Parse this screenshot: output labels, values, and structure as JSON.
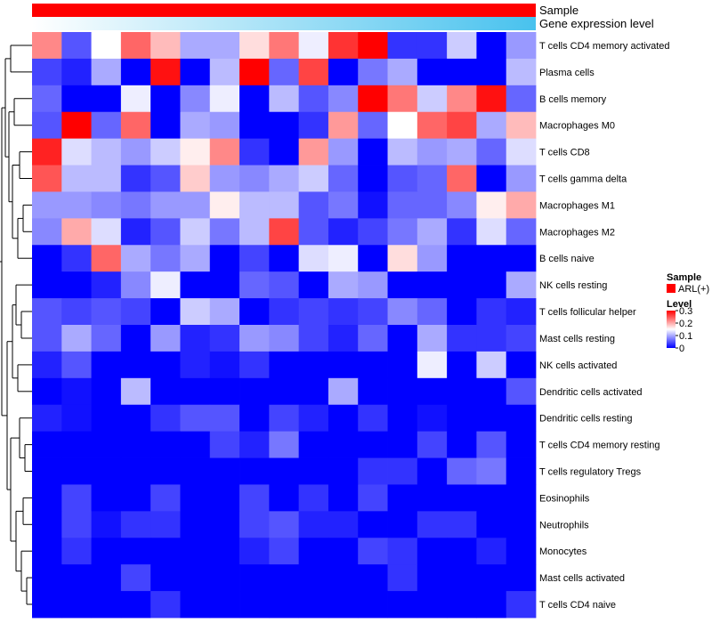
{
  "chart_data": {
    "type": "heatmap",
    "title": "",
    "annotations": [
      {
        "name": "Sample",
        "kind": "solid",
        "color": "#ff0000"
      },
      {
        "name": "Gene expression level",
        "kind": "gradient",
        "colors": [
          "#ffffff",
          "#48c2ee"
        ]
      }
    ],
    "rows": [
      "T cells CD4 memory activated",
      "Plasma cells",
      "B cells memory",
      "Macrophages M0",
      "T cells CD8",
      "T cells gamma delta",
      "Macrophages M1",
      "Macrophages M2",
      "B cells naive",
      "NK cells resting",
      "T cells follicular helper",
      "Mast cells resting",
      "NK cells activated",
      "Dendritic cells activated",
      "Dendritic cells resting",
      "T cells CD4 memory resting",
      "T cells regulatory  Tregs",
      "Eosinophils",
      "Neutrophils",
      "Monocytes",
      "Mast cells activated",
      "T cells CD4 naive"
    ],
    "n_columns": 17,
    "values": [
      [
        0.22,
        0.05,
        0.15,
        0.24,
        0.19,
        0.1,
        0.1,
        0.17,
        0.23,
        0.14,
        0.27,
        0.3,
        0.03,
        0.03,
        0.12,
        0.0,
        0.09
      ],
      [
        0.04,
        0.02,
        0.1,
        0.0,
        0.29,
        0.0,
        0.11,
        0.3,
        0.06,
        0.26,
        0.0,
        0.07,
        0.1,
        0.0,
        0.0,
        0.0,
        0.11
      ],
      [
        0.06,
        0.0,
        0.0,
        0.14,
        0.0,
        0.08,
        0.14,
        0.0,
        0.11,
        0.05,
        0.08,
        0.3,
        0.23,
        0.12,
        0.22,
        0.29,
        0.06
      ],
      [
        0.05,
        0.3,
        0.06,
        0.24,
        0.0,
        0.1,
        0.09,
        0.0,
        0.0,
        0.03,
        0.21,
        0.06,
        0.15,
        0.24,
        0.26,
        0.1,
        0.19
      ],
      [
        0.28,
        0.13,
        0.11,
        0.09,
        0.12,
        0.16,
        0.22,
        0.03,
        0.0,
        0.21,
        0.09,
        0.0,
        0.11,
        0.09,
        0.1,
        0.06,
        0.13
      ],
      [
        0.25,
        0.11,
        0.11,
        0.03,
        0.05,
        0.18,
        0.09,
        0.08,
        0.1,
        0.12,
        0.06,
        0.0,
        0.05,
        0.06,
        0.24,
        0.0,
        0.09
      ],
      [
        0.09,
        0.09,
        0.08,
        0.07,
        0.09,
        0.09,
        0.16,
        0.11,
        0.11,
        0.05,
        0.07,
        0.01,
        0.06,
        0.06,
        0.08,
        0.16,
        0.2
      ],
      [
        0.08,
        0.2,
        0.13,
        0.02,
        0.05,
        0.12,
        0.07,
        0.11,
        0.26,
        0.05,
        0.02,
        0.04,
        0.07,
        0.1,
        0.03,
        0.13,
        0.06
      ],
      [
        0.0,
        0.03,
        0.24,
        0.1,
        0.07,
        0.1,
        0.0,
        0.04,
        0.0,
        0.13,
        0.14,
        0.0,
        0.17,
        0.09,
        0.0,
        0.0,
        0.0
      ],
      [
        0.0,
        0.0,
        0.02,
        0.08,
        0.14,
        0.0,
        0.0,
        0.06,
        0.05,
        0.0,
        0.1,
        0.09,
        0.0,
        0.0,
        0.0,
        0.0,
        0.1
      ],
      [
        0.05,
        0.04,
        0.05,
        0.04,
        0.0,
        0.12,
        0.1,
        0.0,
        0.03,
        0.04,
        0.03,
        0.04,
        0.08,
        0.06,
        0.0,
        0.03,
        0.02
      ],
      [
        0.05,
        0.1,
        0.06,
        0.0,
        0.09,
        0.02,
        0.03,
        0.09,
        0.08,
        0.04,
        0.02,
        0.06,
        0.0,
        0.1,
        0.03,
        0.03,
        0.04
      ],
      [
        0.02,
        0.05,
        0.0,
        0.0,
        0.0,
        0.02,
        0.01,
        0.03,
        0.0,
        0.0,
        0.0,
        0.0,
        0.0,
        0.14,
        0.0,
        0.12,
        0.0
      ],
      [
        0.0,
        0.01,
        0.0,
        0.11,
        0.0,
        0.0,
        0.0,
        0.0,
        0.0,
        0.0,
        0.1,
        0.0,
        0.0,
        0.0,
        0.0,
        0.0,
        0.05
      ],
      [
        0.02,
        0.01,
        0.0,
        0.0,
        0.03,
        0.05,
        0.05,
        0.0,
        0.04,
        0.02,
        0.0,
        0.03,
        0.0,
        0.01,
        0.0,
        0.0,
        0.0
      ],
      [
        0.0,
        0.0,
        0.0,
        0.0,
        0.0,
        0.0,
        0.04,
        0.02,
        0.07,
        0.0,
        0.0,
        0.0,
        0.0,
        0.04,
        0.0,
        0.05,
        0.0
      ],
      [
        0.0,
        0.0,
        0.0,
        0.0,
        0.0,
        0.0,
        0.0,
        0.0,
        0.0,
        0.0,
        0.0,
        0.03,
        0.03,
        0.0,
        0.06,
        0.07,
        0.0
      ],
      [
        0.0,
        0.04,
        0.0,
        0.0,
        0.04,
        0.0,
        0.0,
        0.04,
        0.0,
        0.03,
        0.0,
        0.04,
        0.0,
        0.0,
        0.0,
        0.0,
        0.0
      ],
      [
        0.0,
        0.04,
        0.01,
        0.03,
        0.03,
        0.0,
        0.0,
        0.04,
        0.05,
        0.02,
        0.02,
        0.0,
        0.0,
        0.03,
        0.03,
        0.0,
        0.0
      ],
      [
        0.0,
        0.03,
        0.0,
        0.0,
        0.0,
        0.0,
        0.0,
        0.02,
        0.04,
        0.0,
        0.0,
        0.04,
        0.03,
        0.0,
        0.0,
        0.02,
        0.0
      ],
      [
        0.0,
        0.0,
        0.0,
        0.04,
        0.0,
        0.0,
        0.0,
        0.0,
        0.0,
        0.0,
        0.0,
        0.0,
        0.03,
        0.0,
        0.0,
        0.0,
        0.0
      ],
      [
        0.0,
        0.0,
        0.0,
        0.0,
        0.03,
        0.0,
        0.0,
        0.0,
        0.0,
        0.0,
        0.0,
        0.0,
        0.0,
        0.0,
        0.0,
        0.0,
        0.03
      ]
    ],
    "color_scale": {
      "min": 0,
      "mid": 0.15,
      "max": 0.3,
      "low": "#0000ff",
      "mid_color": "#ffffff",
      "high": "#ff0000"
    },
    "legend": {
      "sample_title": "Sample",
      "sample_item": "ARL(+)",
      "sample_color": "#ff0000",
      "level_title": "Level",
      "ticks": [
        0.3,
        0.2,
        0.1,
        0
      ],
      "tick_labels": [
        "0.3",
        "0.2",
        "0.1",
        "0"
      ]
    },
    "row_dendrogram": true
  }
}
